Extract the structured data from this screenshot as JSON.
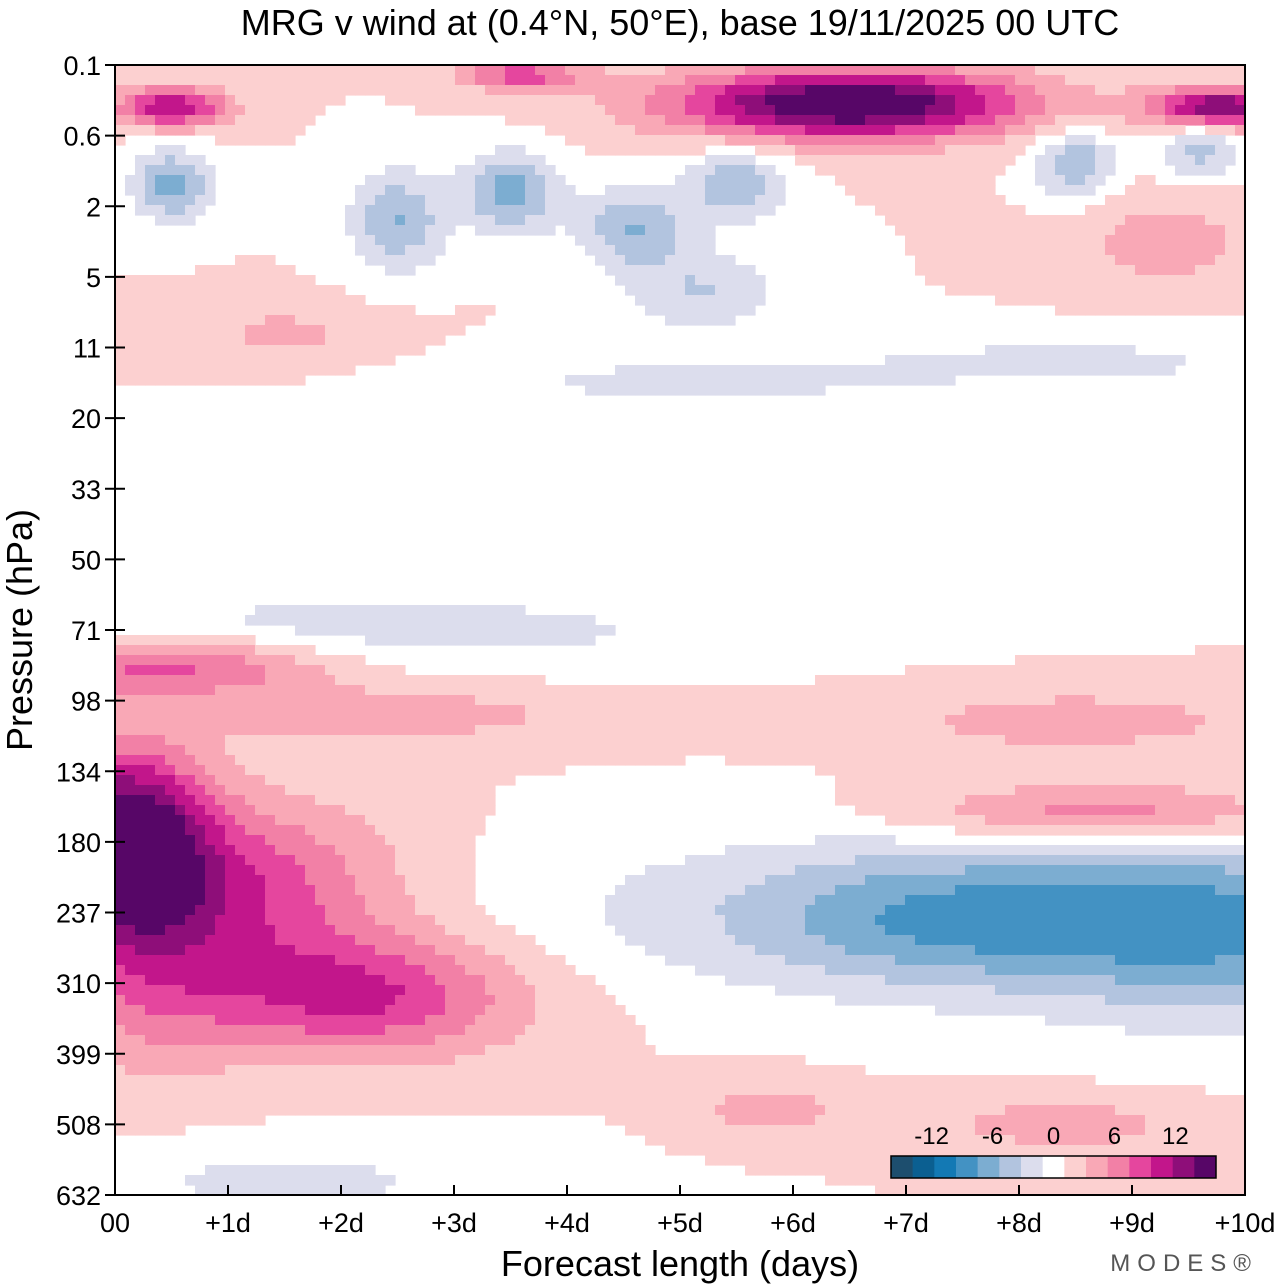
{
  "chart_data": {
    "type": "heatmap",
    "title": "MRG v wind at (0.4°N, 50°E),  base 19/11/2025  00 UTC",
    "xlabel": "Forecast length (days)",
    "ylabel": "Pressure (hPa)",
    "x_ticks": [
      "00",
      "+1d",
      "+2d",
      "+3d",
      "+4d",
      "+5d",
      "+6d",
      "+7d",
      "+8d",
      "+9d",
      "+10d"
    ],
    "y_ticks": [
      "0.1",
      "0.6",
      "2",
      "5",
      "11",
      "20",
      "33",
      "50",
      "71",
      "98",
      "134",
      "180",
      "237",
      "310",
      "399",
      "508",
      "632"
    ],
    "xlim": [
      0,
      10
    ],
    "y_levels": 16,
    "colorbar": {
      "labels": [
        "-12",
        "-6",
        "0",
        "6",
        "12"
      ],
      "label_positions": [
        -12,
        -6,
        0,
        6,
        12
      ],
      "range": [
        -16,
        16
      ],
      "step": 2,
      "colors": [
        "#1d4e6e",
        "#0b5f91",
        "#1379b4",
        "#4392c3",
        "#7cadd1",
        "#b2c4df",
        "#dcdded",
        "#ffffff",
        "#fcd0d0",
        "#f9a8b6",
        "#f280a6",
        "#e5469e",
        "#c2168b",
        "#8e0e79",
        "#570667"
      ]
    },
    "features": [
      {
        "name": "upper-neg-1",
        "x": 0.5,
        "y": 1.7,
        "sx": 0.25,
        "sy": 0.35,
        "amp": -7
      },
      {
        "name": "upper-neg-2",
        "x": 2.5,
        "y": 2.2,
        "sx": 0.3,
        "sy": 0.5,
        "amp": -6
      },
      {
        "name": "upper-neg-3",
        "x": 3.5,
        "y": 1.8,
        "sx": 0.3,
        "sy": 0.4,
        "amp": -7
      },
      {
        "name": "upper-neg-4",
        "x": 4.6,
        "y": 2.3,
        "sx": 0.35,
        "sy": 0.4,
        "amp": -6
      },
      {
        "name": "upper-neg-5",
        "x": 5.5,
        "y": 1.7,
        "sx": 0.3,
        "sy": 0.35,
        "amp": -6
      },
      {
        "name": "upper-neg-6",
        "x": 8.5,
        "y": 1.4,
        "sx": 0.25,
        "sy": 0.35,
        "amp": -6
      },
      {
        "name": "upper-neg-7",
        "x": 9.6,
        "y": 1.2,
        "sx": 0.25,
        "sy": 0.3,
        "amp": -5
      },
      {
        "name": "upper-pos-1",
        "x": 0.5,
        "y": 0.6,
        "sx": 0.35,
        "sy": 0.2,
        "amp": 10
      },
      {
        "name": "upper-pos-2",
        "x": 6.5,
        "y": 0.55,
        "sx": 1.1,
        "sy": 0.35,
        "amp": 15
      },
      {
        "name": "upper-pos-3",
        "x": 9.8,
        "y": 0.6,
        "sx": 0.45,
        "sy": 0.2,
        "amp": 12
      },
      {
        "name": "upper-pos-4",
        "x": 3.6,
        "y": 0.15,
        "sx": 0.4,
        "sy": 0.15,
        "amp": 7
      },
      {
        "name": "upper-pos-5",
        "x": 9.3,
        "y": 2.5,
        "sx": 0.6,
        "sy": 0.5,
        "amp": 3
      },
      {
        "name": "mid-neg-1",
        "x": 5.2,
        "y": 3.2,
        "sx": 0.5,
        "sy": 0.4,
        "amp": -4
      },
      {
        "name": "mid-neg-2",
        "x": 5.0,
        "y": 4.5,
        "sx": 1.5,
        "sy": 0.3,
        "amp": -2.5
      },
      {
        "name": "mid-neg-3",
        "x": 8.5,
        "y": 4.2,
        "sx": 1.5,
        "sy": 0.3,
        "amp": -2.5
      },
      {
        "name": "mid-pos-1",
        "x": 1.5,
        "y": 3.8,
        "sx": 0.6,
        "sy": 0.3,
        "amp": 2.5
      },
      {
        "name": "mid-neg-4",
        "x": 2.2,
        "y": 8.0,
        "sx": 2.5,
        "sy": 0.4,
        "amp": -3
      },
      {
        "name": "mid-pos-2",
        "x": 0.5,
        "y": 8.5,
        "sx": 1.0,
        "sy": 0.3,
        "amp": 7
      },
      {
        "name": "mid-pos-3",
        "x": 2.5,
        "y": 9.2,
        "sx": 1.3,
        "sy": 0.3,
        "amp": 3
      },
      {
        "name": "low-pos-1",
        "x": 0.1,
        "y": 11.0,
        "sx": 0.5,
        "sy": 0.9,
        "amp": 15
      },
      {
        "name": "low-pos-2",
        "x": 1.2,
        "y": 11.7,
        "sx": 0.9,
        "sy": 0.9,
        "amp": 7
      },
      {
        "name": "low-pos-3",
        "x": 2.2,
        "y": 13.2,
        "sx": 1.0,
        "sy": 0.6,
        "amp": 8
      },
      {
        "name": "low-pos-4",
        "x": 0.3,
        "y": 13.0,
        "sx": 0.6,
        "sy": 1.0,
        "amp": 4
      },
      {
        "name": "low-neg-1",
        "x": 6.0,
        "y": 12.0,
        "sx": 1.8,
        "sy": 0.8,
        "amp": -3
      },
      {
        "name": "low-neg-2",
        "x": 7.5,
        "y": 12.1,
        "sx": 1.2,
        "sy": 0.7,
        "amp": -6
      },
      {
        "name": "low-neg-3",
        "x": 9.8,
        "y": 12.2,
        "sx": 1.2,
        "sy": 0.9,
        "amp": -8
      },
      {
        "name": "low-pos-5",
        "x": 8.8,
        "y": 10.6,
        "sx": 1.2,
        "sy": 0.3,
        "amp": 6
      },
      {
        "name": "low-pos-6",
        "x": 8.5,
        "y": 9.3,
        "sx": 1.3,
        "sy": 0.35,
        "amp": 3
      },
      {
        "name": "low-pos-7",
        "x": 8.4,
        "y": 15.0,
        "sx": 0.9,
        "sy": 0.3,
        "amp": 3
      },
      {
        "name": "low-pos-8",
        "x": 5.8,
        "y": 14.8,
        "sx": 0.5,
        "sy": 0.3,
        "amp": 3
      },
      {
        "name": "low-neg-4",
        "x": 1.5,
        "y": 15.8,
        "sx": 1.5,
        "sy": 0.4,
        "amp": -2.5
      }
    ]
  },
  "brand": "MODES®"
}
